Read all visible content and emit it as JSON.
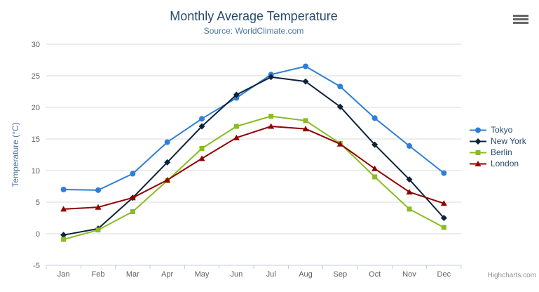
{
  "header": {
    "title": "Monthly Average Temperature",
    "subtitle": "Source: WorldClimate.com"
  },
  "credits": "Highcharts.com",
  "icons": {
    "menu": "hamburger"
  },
  "colors": {
    "title_text": "#274b6d",
    "subtitle_text": "#4d759e",
    "axis_label": "#606060",
    "axis_title": "#4d759e",
    "grid_line": "#d8d8d8",
    "axis_line": "#c0d0e0",
    "legend_text": "#274b6d",
    "credits_text": "#909090",
    "menu_icon": "#666666"
  },
  "chart_data": {
    "type": "line",
    "title": "Monthly Average Temperature",
    "subtitle": "Source: WorldClimate.com",
    "categories": [
      "Jan",
      "Feb",
      "Mar",
      "Apr",
      "May",
      "Jun",
      "Jul",
      "Aug",
      "Sep",
      "Oct",
      "Nov",
      "Dec"
    ],
    "xlabel": "",
    "ylabel": "Temperature (°C)",
    "ylim": [
      -5,
      30
    ],
    "yticks": [
      -5,
      0,
      5,
      10,
      15,
      20,
      25,
      30
    ],
    "grid": true,
    "legend_position": "right",
    "series": [
      {
        "name": "Tokyo",
        "color": "#2f7ed8",
        "marker": "circle",
        "values": [
          7.0,
          6.9,
          9.5,
          14.5,
          18.2,
          21.5,
          25.2,
          26.5,
          23.3,
          18.3,
          13.9,
          9.6
        ]
      },
      {
        "name": "New York",
        "color": "#0d233a",
        "marker": "diamond",
        "values": [
          -0.2,
          0.8,
          5.7,
          11.3,
          17.0,
          22.0,
          24.8,
          24.1,
          20.1,
          14.1,
          8.6,
          2.5
        ]
      },
      {
        "name": "Berlin",
        "color": "#8bbc21",
        "marker": "square",
        "values": [
          -0.9,
          0.6,
          3.5,
          8.4,
          13.5,
          17.0,
          18.6,
          17.9,
          14.3,
          9.0,
          3.9,
          1.0
        ]
      },
      {
        "name": "London",
        "color": "#910000",
        "marker": "triangle",
        "values": [
          3.9,
          4.2,
          5.7,
          8.5,
          11.9,
          15.2,
          17.0,
          16.6,
          14.2,
          10.3,
          6.6,
          4.8
        ]
      }
    ]
  }
}
